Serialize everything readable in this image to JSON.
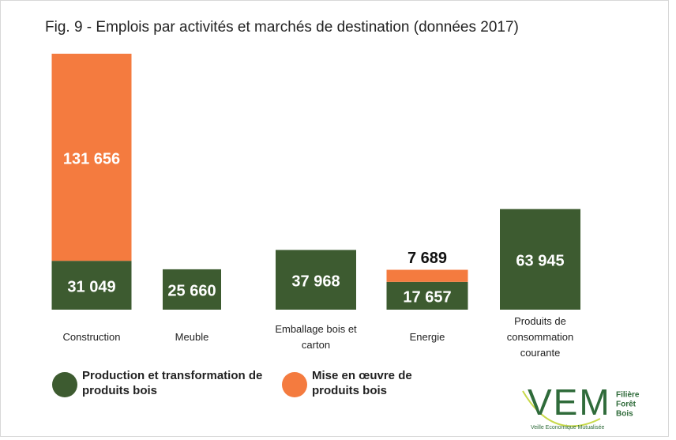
{
  "chart_data": {
    "type": "stacked-bar",
    "title": "Fig. 9 - Emplois par activités  et marchés de destination (données 2017)",
    "categories": [
      "Construction",
      "Meuble",
      "Emballage bois et carton",
      "Energie",
      "Produits de consommation courante"
    ],
    "series": [
      {
        "name": "Production et transformation de produits bois",
        "color": "#3d5b30",
        "values": [
          31049,
          25660,
          37968,
          17657,
          63945
        ],
        "value_labels": [
          "31 049",
          "25 660",
          "37 968",
          "17 657",
          "63 945"
        ]
      },
      {
        "name": "Mise en œuvre de produits bois",
        "color": "#f47b3f",
        "values": [
          131656,
          null,
          null,
          7689,
          null
        ],
        "value_labels": [
          "131 656",
          null,
          null,
          "7 689",
          null
        ]
      }
    ]
  },
  "logo": {
    "mark": "VEM",
    "line1": "Filière",
    "line2": "Forêt",
    "line3": "Bois",
    "tagline": "Veille Economique Mutualisée"
  }
}
